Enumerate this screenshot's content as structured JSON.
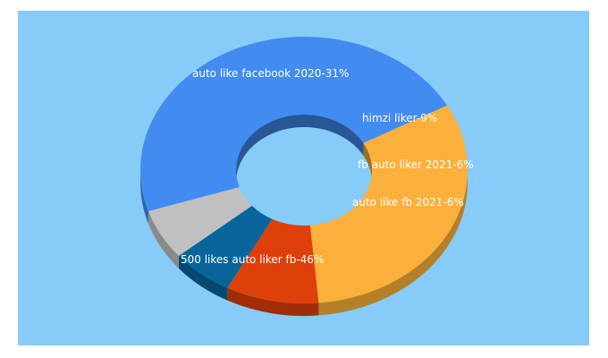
{
  "chart_data": {
    "type": "pie",
    "variant": "3d-donut",
    "title": "",
    "slices": [
      {
        "label": "500 likes auto liker fb-46%",
        "value": 46,
        "color": "#428bf0"
      },
      {
        "label": "auto like facebook 2020-31%",
        "value": 31,
        "color": "#fbb03b"
      },
      {
        "label": "himzi liker-9%",
        "value": 9,
        "color": "#df3f0b"
      },
      {
        "label": "fb auto liker 2021-6%",
        "value": 6,
        "color": "#07659c"
      },
      {
        "label": "auto like fb 2021-6%",
        "value": 6,
        "color": "#c0c0c0"
      }
    ]
  },
  "colors": {
    "background": "#87cbf9",
    "label_text": "#ffffff"
  }
}
